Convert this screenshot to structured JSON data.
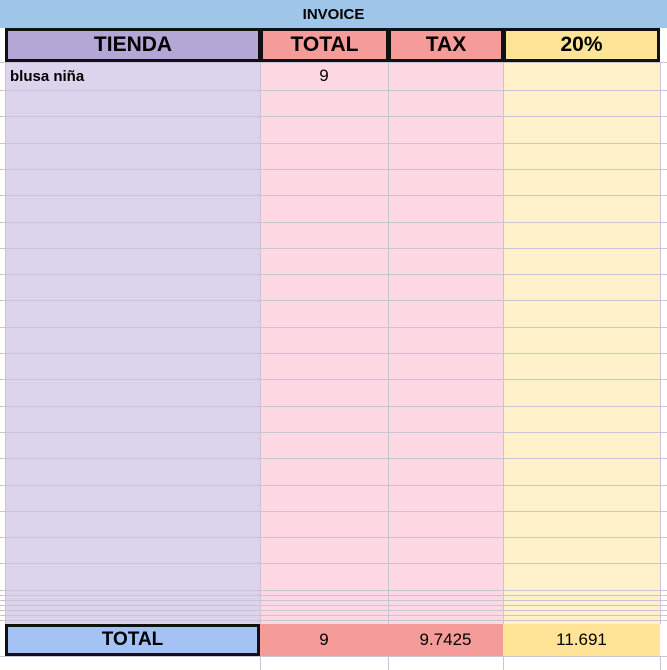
{
  "header": {
    "title": "INVOICE"
  },
  "table": {
    "columns": [
      "TIENDA",
      "TOTAL",
      "TAX",
      "20%"
    ],
    "rows": [
      [
        "blusa niña",
        9
      ]
    ],
    "footer": [
      "TOTAL",
      9,
      9.7425,
      11.691
    ]
  }
}
